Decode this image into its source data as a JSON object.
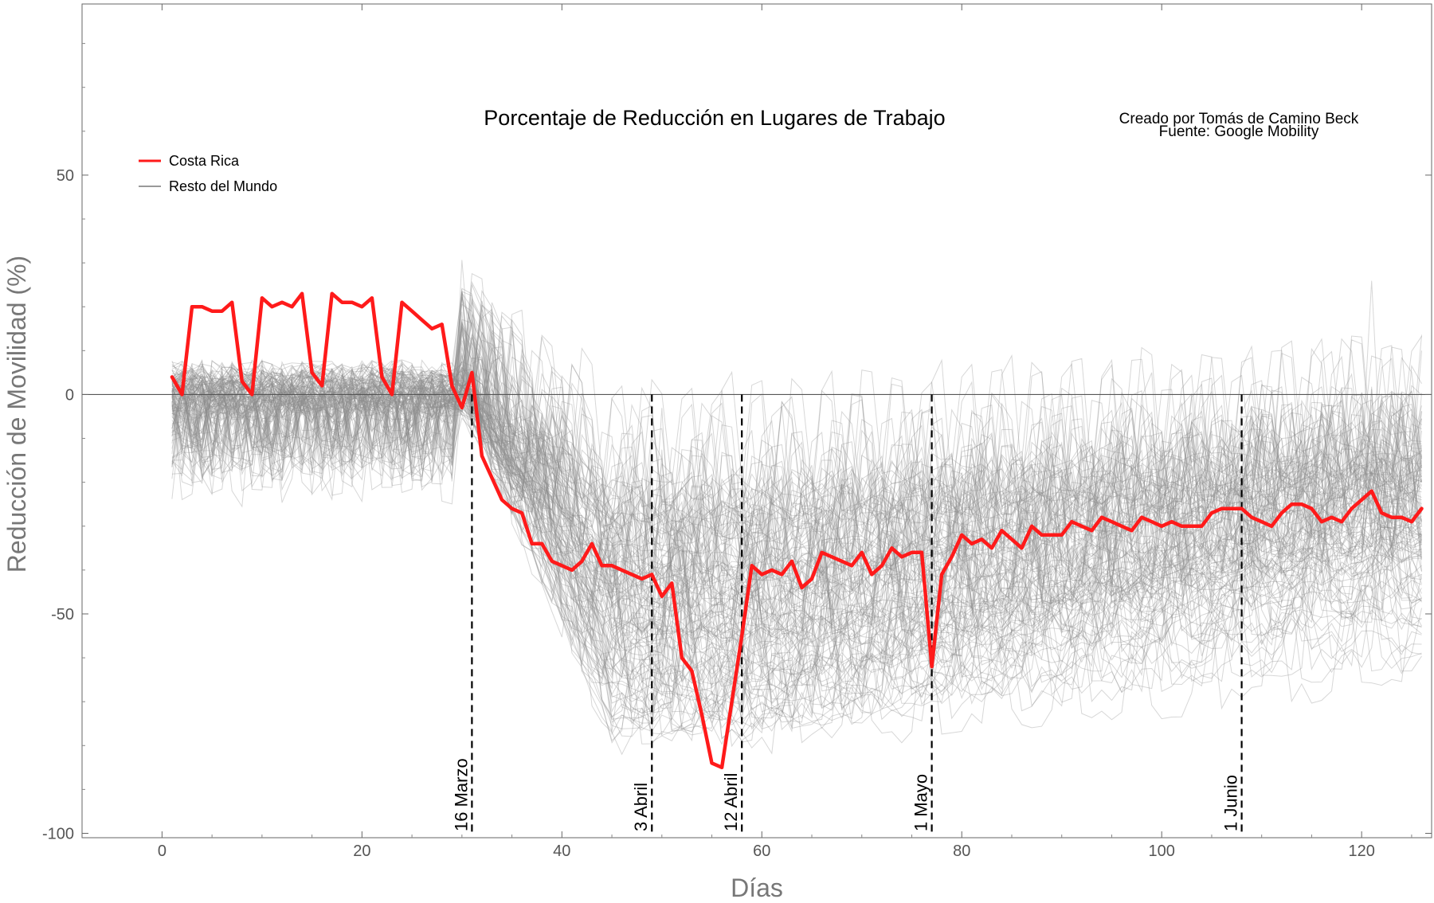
{
  "chart_data": {
    "type": "line",
    "title": "Porcentaje de Reducción en Lugares de Trabajo",
    "credits": [
      "Creado por Tomás de Camino Beck",
      "Fuente: Google Mobility"
    ],
    "xlabel": "Días",
    "ylabel": "Reducción de Movilidad (%)",
    "xlim": [
      -8,
      127
    ],
    "ylim": [
      -101,
      89
    ],
    "xticks": [
      0,
      20,
      40,
      60,
      80,
      100,
      120
    ],
    "yticks": [
      -100,
      -50,
      0,
      50
    ],
    "legend": {
      "position": "top-left",
      "entries": [
        {
          "label": "Costa Rica",
          "color": "#ff1a1a"
        },
        {
          "label": "Resto del Mundo",
          "color": "#999999"
        }
      ]
    },
    "events": [
      {
        "label": "16 Marzo",
        "x": 31
      },
      {
        "label": "3 Abril",
        "x": 49
      },
      {
        "label": "12 Abril",
        "x": 58
      },
      {
        "label": "1 Mayo",
        "x": 77
      },
      {
        "label": "1 Junio",
        "x": 108
      }
    ],
    "series": [
      {
        "name": "Costa Rica",
        "color": "#ff1a1a",
        "x": [
          1,
          2,
          3,
          4,
          5,
          6,
          7,
          8,
          9,
          10,
          11,
          12,
          13,
          14,
          15,
          16,
          17,
          18,
          19,
          20,
          21,
          22,
          23,
          24,
          25,
          26,
          27,
          28,
          29,
          30,
          31,
          32,
          33,
          34,
          35,
          36,
          37,
          38,
          39,
          40,
          41,
          42,
          43,
          44,
          45,
          46,
          47,
          48,
          49,
          50,
          51,
          52,
          53,
          54,
          55,
          56,
          57,
          58,
          59,
          60,
          61,
          62,
          63,
          64,
          65,
          66,
          67,
          68,
          69,
          70,
          71,
          72,
          73,
          74,
          75,
          76,
          77,
          78,
          79,
          80,
          81,
          82,
          83,
          84,
          85,
          86,
          87,
          88,
          89,
          90,
          91,
          92,
          93,
          94,
          95,
          96,
          97,
          98,
          99,
          100,
          101,
          102,
          103,
          104,
          105,
          106,
          107,
          108,
          109,
          110,
          111,
          112,
          113,
          114,
          115,
          116,
          117,
          118,
          119,
          120,
          121,
          122,
          123,
          124,
          125,
          126
        ],
        "values": [
          4,
          0,
          20,
          20,
          19,
          19,
          21,
          3,
          0,
          22,
          20,
          21,
          20,
          23,
          5,
          2,
          23,
          21,
          21,
          20,
          22,
          4,
          0,
          21,
          19,
          17,
          15,
          16,
          2,
          -3,
          5,
          -14,
          -19,
          -24,
          -26,
          -27,
          -34,
          -34,
          -38,
          -39,
          -40,
          -38,
          -34,
          -39,
          -39,
          -40,
          -41,
          -42,
          -41,
          -46,
          -43,
          -60,
          -63,
          -73,
          -84,
          -85,
          -70,
          -55,
          -39,
          -41,
          -40,
          -41,
          -38,
          -44,
          -42,
          -36,
          -37,
          -38,
          -39,
          -36,
          -41,
          -39,
          -35,
          -37,
          -36,
          -36,
          -62,
          -41,
          -37,
          -32,
          -34,
          -33,
          -35,
          -31,
          -33,
          -35,
          -30,
          -32,
          -32,
          -32,
          -29,
          -30,
          -31,
          -28,
          -29,
          -30,
          -31,
          -28,
          -29,
          -30,
          -29,
          -30,
          -30,
          -30,
          -27,
          -26,
          -26,
          -26,
          -28,
          -29,
          -30,
          -27,
          -25,
          -25,
          -26,
          -29,
          -28,
          -29,
          -26,
          -24,
          -22,
          -27,
          -28,
          -28,
          -29,
          -26
        ]
      },
      {
        "name": "Resto del Mundo",
        "color": "#999999",
        "note": "about 130 countries, drawn as thin translucent gray lines following the same weekly pattern"
      }
    ]
  }
}
